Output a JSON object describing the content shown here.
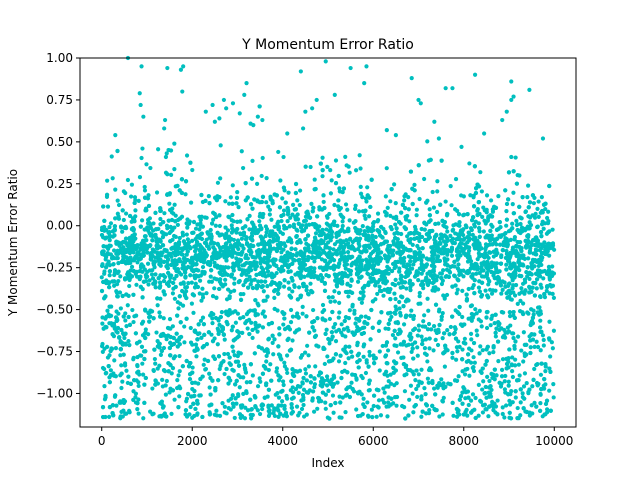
{
  "chart_data": {
    "type": "scatter",
    "title": "Y Momentum Error Ratio",
    "xlabel": "Index",
    "ylabel": "Y Momentum Error Ratio",
    "xlim": [
      -480,
      10480
    ],
    "ylim": [
      -1.2,
      1.0
    ],
    "x_ticks": [
      0,
      2000,
      4000,
      6000,
      8000,
      10000
    ],
    "x_tick_labels": [
      "0",
      "2000",
      "4000",
      "6000",
      "8000",
      "10000"
    ],
    "y_ticks": [
      -1.0,
      -0.75,
      -0.5,
      -0.25,
      0.0,
      0.25,
      0.5,
      0.75,
      1.0
    ],
    "y_tick_labels": [
      "−1.00",
      "−0.75",
      "−0.50",
      "−0.25",
      "0.00",
      "0.25",
      "0.50",
      "0.75",
      "1.00"
    ],
    "grid": false,
    "marker_color": "#00bfbf",
    "series": [
      {
        "name": "",
        "x_range": [
          0,
          9999
        ],
        "count": 10000,
        "band_center": -0.18,
        "dense_band": [
          -0.45,
          0.1
        ],
        "lower_cluster": [
          -1.2,
          -0.5
        ],
        "outliers": [
          [
            580,
            1.0
          ],
          [
            880,
            0.95
          ],
          [
            840,
            0.79
          ],
          [
            860,
            0.72
          ],
          [
            920,
            0.65
          ],
          [
            300,
            0.54
          ],
          [
            900,
            0.46
          ],
          [
            1450,
            0.94
          ],
          [
            1750,
            0.93
          ],
          [
            1800,
            0.95
          ],
          [
            1780,
            0.8
          ],
          [
            1400,
            0.63
          ],
          [
            1380,
            0.58
          ],
          [
            2300,
            0.68
          ],
          [
            2450,
            0.72
          ],
          [
            2500,
            0.62
          ],
          [
            2600,
            0.64
          ],
          [
            2700,
            0.75
          ],
          [
            2750,
            0.7
          ],
          [
            2900,
            0.73
          ],
          [
            3050,
            0.67
          ],
          [
            3150,
            0.78
          ],
          [
            3200,
            0.85
          ],
          [
            3350,
            0.6
          ],
          [
            3450,
            0.65
          ],
          [
            3550,
            0.63
          ],
          [
            3900,
            0.44
          ],
          [
            4100,
            0.55
          ],
          [
            4400,
            0.92
          ],
          [
            4500,
            0.68
          ],
          [
            4650,
            0.7
          ],
          [
            4750,
            0.75
          ],
          [
            4950,
            0.98
          ],
          [
            5150,
            0.78
          ],
          [
            4450,
            0.58
          ],
          [
            5500,
            0.94
          ],
          [
            5850,
            0.95
          ],
          [
            5800,
            0.85
          ],
          [
            5700,
            0.42
          ],
          [
            6300,
            0.57
          ],
          [
            6500,
            0.54
          ],
          [
            6850,
            0.88
          ],
          [
            7050,
            0.73
          ],
          [
            7000,
            0.75
          ],
          [
            7350,
            0.62
          ],
          [
            7450,
            0.52
          ],
          [
            7600,
            0.82
          ],
          [
            7750,
            0.82
          ],
          [
            7950,
            0.47
          ],
          [
            8250,
            0.9
          ],
          [
            8450,
            0.55
          ],
          [
            8850,
            0.63
          ],
          [
            8950,
            0.68
          ],
          [
            9050,
            0.86
          ],
          [
            9050,
            0.75
          ],
          [
            9100,
            0.77
          ],
          [
            9050,
            0.41
          ],
          [
            9450,
            0.81
          ],
          [
            9750,
            0.52
          ]
        ]
      }
    ]
  }
}
